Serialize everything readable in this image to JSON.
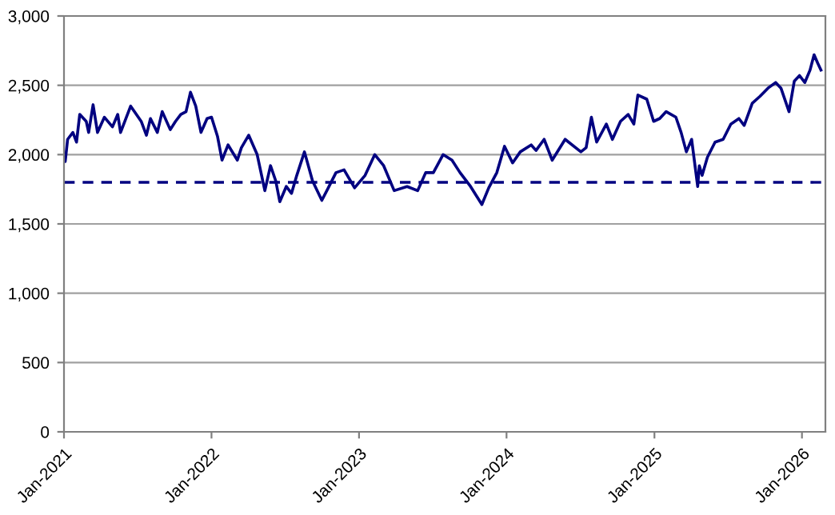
{
  "chart_data": {
    "type": "line",
    "x": [
      "2021-01-01",
      "2021-01-04",
      "2021-01-10",
      "2021-01-23",
      "2021-02-01",
      "2021-02-09",
      "2021-02-25",
      "2021-03-03",
      "2021-03-14",
      "2021-03-25",
      "2021-04-11",
      "2021-05-01",
      "2021-05-14",
      "2021-05-21",
      "2021-06-15",
      "2021-07-11",
      "2021-07-24",
      "2021-08-03",
      "2021-08-20",
      "2021-09-01",
      "2021-09-21",
      "2021-10-04",
      "2021-10-17",
      "2021-10-30",
      "2021-11-10",
      "2021-11-23",
      "2021-12-06",
      "2021-12-21",
      "2022-01-01",
      "2022-01-16",
      "2022-01-27",
      "2022-02-11",
      "2022-03-06",
      "2022-03-16",
      "2022-04-03",
      "2022-04-24",
      "2022-05-13",
      "2022-05-27",
      "2022-06-09",
      "2022-06-19",
      "2022-07-05",
      "2022-07-18",
      "2022-07-31",
      "2022-08-19",
      "2022-09-08",
      "2022-10-01",
      "2022-10-17",
      "2022-11-05",
      "2022-11-25",
      "2022-12-21",
      "2023-01-16",
      "2023-02-09",
      "2023-03-03",
      "2023-03-29",
      "2023-04-30",
      "2023-05-26",
      "2023-06-15",
      "2023-07-04",
      "2023-07-28",
      "2023-08-19",
      "2023-09-08",
      "2023-10-04",
      "2023-11-01",
      "2023-11-18",
      "2023-12-08",
      "2023-12-27",
      "2024-01-16",
      "2024-02-04",
      "2024-03-02",
      "2024-03-14",
      "2024-04-03",
      "2024-04-23",
      "2024-05-25",
      "2024-07-03",
      "2024-07-16",
      "2024-07-29",
      "2024-08-11",
      "2024-09-04",
      "2024-09-19",
      "2024-10-09",
      "2024-10-28",
      "2024-11-11",
      "2024-11-21",
      "2024-12-13",
      "2024-12-30",
      "2025-01-14",
      "2025-01-30",
      "2025-02-23",
      "2025-03-08",
      "2025-03-21",
      "2025-04-03",
      "2025-04-18",
      "2025-04-22",
      "2025-04-29",
      "2025-05-12",
      "2025-05-31",
      "2025-06-20",
      "2025-07-09",
      "2025-07-29",
      "2025-08-11",
      "2025-08-31",
      "2025-09-19",
      "2025-10-09",
      "2025-10-28",
      "2025-11-10",
      "2025-11-30",
      "2025-12-13",
      "2025-12-26",
      "2026-01-08",
      "2026-01-21",
      "2026-01-31",
      "2026-02-09",
      "2026-02-17"
    ],
    "series": [
      {
        "color": "#000080",
        "values": [
          1980,
          1950,
          2110,
          2160,
          2090,
          2290,
          2240,
          2160,
          2360,
          2160,
          2270,
          2200,
          2290,
          2160,
          2350,
          2240,
          2140,
          2260,
          2160,
          2310,
          2180,
          2240,
          2290,
          2310,
          2450,
          2350,
          2160,
          2260,
          2270,
          2130,
          1960,
          2070,
          1960,
          2050,
          2140,
          2000,
          1740,
          1920,
          1810,
          1660,
          1770,
          1720,
          1850,
          2020,
          1810,
          1670,
          1760,
          1870,
          1890,
          1760,
          1850,
          2000,
          1920,
          1740,
          1770,
          1740,
          1870,
          1870,
          2000,
          1960,
          1870,
          1770,
          1640,
          1760,
          1870,
          2060,
          1940,
          2020,
          2070,
          2030,
          2110,
          1960,
          2110,
          2020,
          2050,
          2270,
          2090,
          2220,
          2110,
          2240,
          2290,
          2220,
          2430,
          2400,
          2240,
          2260,
          2310,
          2270,
          2160,
          2020,
          2110,
          1770,
          1920,
          1850,
          1980,
          2090,
          2110,
          2220,
          2260,
          2210,
          2370,
          2420,
          2480,
          2520,
          2480,
          2310,
          2530,
          2570,
          2520,
          2610,
          2720,
          2660,
          2610
        ]
      }
    ],
    "xlim": [
      "2021-01-01",
      "2026-02-28"
    ],
    "xticks": [
      {
        "value": "2021-01-01",
        "label": "Jan-2021"
      },
      {
        "value": "2022-01-01",
        "label": "Jan-2022"
      },
      {
        "value": "2023-01-01",
        "label": "Jan-2023"
      },
      {
        "value": "2024-01-01",
        "label": "Jan-2024"
      },
      {
        "value": "2025-01-01",
        "label": "Jan-2025"
      },
      {
        "value": "2026-01-01",
        "label": "Jan-2026"
      }
    ],
    "ylim": [
      0,
      3000
    ],
    "yticks": [
      0,
      500,
      {
        "value": 1000,
        "label": "1,000"
      },
      {
        "value": 1500,
        "label": "1,500"
      },
      {
        "value": 2000,
        "label": "2,000"
      },
      {
        "value": 2500,
        "label": "2,500"
      },
      {
        "value": 3000,
        "label": "3,000"
      }
    ],
    "ref_lines": [
      {
        "axis": "y",
        "value": 1800,
        "color": "#000080",
        "line_style": "dashed"
      }
    ],
    "grid": "y",
    "legend": false,
    "marker": "none",
    "line_style": "solid"
  }
}
